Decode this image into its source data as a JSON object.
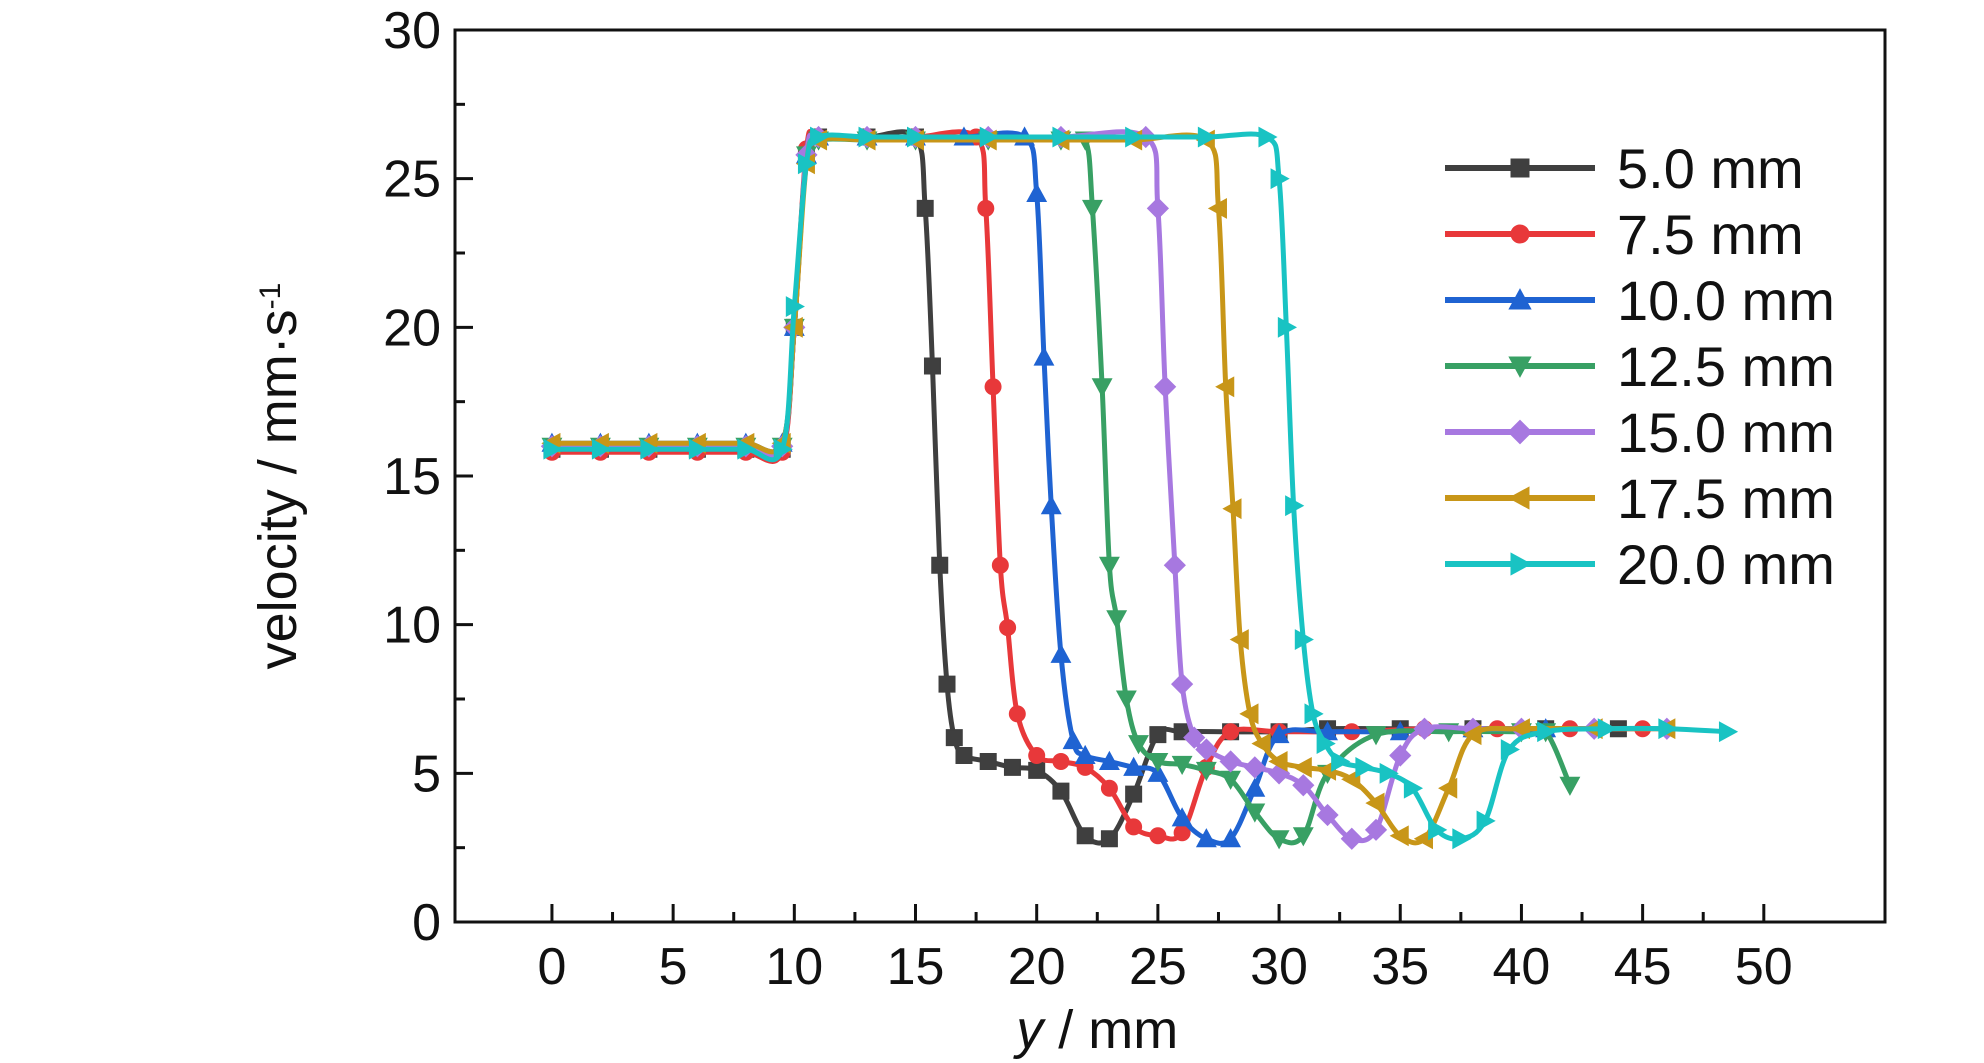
{
  "chart_data": {
    "type": "line",
    "xlabel_italic": "y",
    "xlabel_rest": " / mm",
    "ylabel_main": "velocity / mm·s",
    "ylabel_sup": "-1",
    "xlim": [
      -4,
      55
    ],
    "ylim": [
      0,
      30
    ],
    "x_ticks": [
      0,
      5,
      10,
      15,
      20,
      25,
      30,
      35,
      40,
      45,
      50
    ],
    "y_ticks": [
      0,
      5,
      10,
      15,
      20,
      25,
      30
    ],
    "legend_position": "upper-right",
    "series": [
      {
        "name": "5.0 mm",
        "color": "#3f3f3f",
        "marker": "square",
        "x": [
          0,
          2,
          4,
          6,
          8,
          9.5,
          10,
          10.5,
          11,
          13,
          15,
          15.4,
          15.7,
          16,
          16.3,
          16.6,
          17,
          18,
          19,
          20,
          21,
          22,
          23,
          24,
          25,
          26,
          28,
          30,
          32,
          35,
          38,
          41,
          44
        ],
        "y": [
          15.9,
          15.9,
          15.9,
          15.9,
          15.9,
          15.9,
          20,
          25.8,
          26.4,
          26.4,
          26.4,
          24,
          18.7,
          12,
          8,
          6.2,
          5.6,
          5.4,
          5.2,
          5.1,
          4.4,
          2.9,
          2.8,
          4.3,
          6.3,
          6.4,
          6.4,
          6.4,
          6.5,
          6.5,
          6.5,
          6.5,
          6.5
        ]
      },
      {
        "name": "7.5 mm",
        "color": "#e8383a",
        "marker": "circle",
        "x": [
          0,
          2,
          4,
          6,
          8,
          9.5,
          10,
          10.5,
          11,
          13,
          15,
          17.5,
          17.9,
          18.2,
          18.5,
          18.8,
          19.2,
          20,
          21,
          22,
          23,
          24,
          25,
          26,
          27,
          28,
          30,
          33,
          36,
          39,
          42,
          45
        ],
        "y": [
          15.8,
          15.8,
          15.8,
          15.8,
          15.8,
          15.8,
          20,
          26,
          26.4,
          26.4,
          26.4,
          26.4,
          24,
          18,
          12,
          9.9,
          7,
          5.6,
          5.4,
          5.2,
          4.5,
          3.2,
          2.9,
          3,
          5.2,
          6.4,
          6.4,
          6.4,
          6.5,
          6.5,
          6.5,
          6.5
        ]
      },
      {
        "name": "10.0 mm",
        "color": "#1f63d2",
        "marker": "triangle-up",
        "x": [
          0,
          2,
          4,
          6,
          8,
          9.5,
          10,
          10.5,
          11,
          13,
          15,
          17,
          19.5,
          20,
          20.3,
          20.6,
          21,
          21.5,
          22,
          23,
          24,
          25,
          26,
          27,
          28,
          29,
          30,
          32,
          35,
          38,
          41
        ],
        "y": [
          16.1,
          16.1,
          16.1,
          16.1,
          16.1,
          16.1,
          20,
          25.8,
          26.4,
          26.4,
          26.4,
          26.4,
          26.4,
          24.5,
          19,
          14,
          9,
          6.1,
          5.6,
          5.4,
          5.2,
          5,
          3.5,
          2.8,
          2.8,
          4.5,
          6.3,
          6.4,
          6.4,
          6.5,
          6.5
        ]
      },
      {
        "name": "12.5 mm",
        "color": "#38a064",
        "marker": "triangle-down",
        "x": [
          0,
          2,
          4,
          6,
          8,
          9.5,
          10,
          10.5,
          11,
          13,
          15,
          18,
          21,
          22,
          22.3,
          22.7,
          23,
          23.3,
          23.7,
          24.2,
          25,
          26,
          27,
          28,
          29,
          30,
          31,
          32,
          34,
          37,
          40,
          41,
          42
        ],
        "y": [
          16,
          16,
          16,
          16,
          16,
          16,
          20,
          25.8,
          26.3,
          26.3,
          26.3,
          26.3,
          26.3,
          26.3,
          24,
          18,
          12,
          10.2,
          7.5,
          6,
          5.4,
          5.3,
          5.1,
          4.8,
          3.7,
          2.8,
          2.9,
          5,
          6.3,
          6.4,
          6.4,
          6.4,
          4.6
        ]
      },
      {
        "name": "15.0 mm",
        "color": "#a778e0",
        "marker": "diamond",
        "x": [
          0,
          2,
          4,
          6,
          8,
          9.5,
          10,
          10.5,
          11,
          13,
          15,
          18,
          21,
          24.5,
          25,
          25.3,
          25.7,
          26,
          26.5,
          27,
          28,
          29,
          30,
          31,
          32,
          33,
          34,
          35,
          36,
          38,
          40,
          43,
          46
        ],
        "y": [
          16,
          16,
          16,
          16,
          16,
          16,
          20,
          25.8,
          26.4,
          26.4,
          26.4,
          26.4,
          26.4,
          26.4,
          24,
          18,
          12,
          8,
          6.2,
          5.8,
          5.4,
          5.2,
          5,
          4.6,
          3.6,
          2.8,
          3.1,
          5.6,
          6.5,
          6.5,
          6.5,
          6.5,
          6.5
        ]
      },
      {
        "name": "17.5 mm",
        "color": "#c89618",
        "marker": "triangle-left",
        "x": [
          0,
          2,
          4,
          6,
          8,
          9.5,
          10,
          10.5,
          11,
          13,
          15,
          18,
          21,
          24,
          27,
          27.5,
          27.8,
          28.1,
          28.4,
          28.8,
          29.3,
          30,
          31,
          32,
          33,
          34,
          35,
          36,
          37,
          38,
          40,
          43,
          46
        ],
        "y": [
          16.1,
          16.1,
          16.1,
          16.1,
          16.1,
          16.1,
          20,
          25.5,
          26.3,
          26.3,
          26.3,
          26.3,
          26.3,
          26.3,
          26.3,
          24,
          18,
          13.9,
          9.5,
          7,
          6,
          5.4,
          5.2,
          5.1,
          4.8,
          4,
          2.9,
          2.8,
          4.5,
          6.3,
          6.5,
          6.5,
          6.5
        ]
      },
      {
        "name": "20.0 mm",
        "color": "#19c3c3",
        "marker": "triangle-right",
        "x": [
          0,
          2,
          4,
          6,
          8,
          9.5,
          10,
          10.5,
          11,
          13,
          15,
          18,
          21,
          24,
          27,
          29.5,
          30,
          30.3,
          30.6,
          31,
          31.4,
          31.9,
          32.5,
          33.5,
          34.5,
          35.5,
          36.5,
          37.5,
          38.5,
          39.5,
          41,
          43.5,
          46,
          48.5
        ],
        "y": [
          15.9,
          15.9,
          15.9,
          15.9,
          15.9,
          15.9,
          20.7,
          25.5,
          26.4,
          26.4,
          26.4,
          26.4,
          26.4,
          26.4,
          26.4,
          26.4,
          25,
          20,
          14,
          9.5,
          7,
          6,
          5.4,
          5.2,
          5,
          4.5,
          3.1,
          2.8,
          3.4,
          5.8,
          6.4,
          6.5,
          6.5,
          6.4
        ]
      }
    ]
  }
}
